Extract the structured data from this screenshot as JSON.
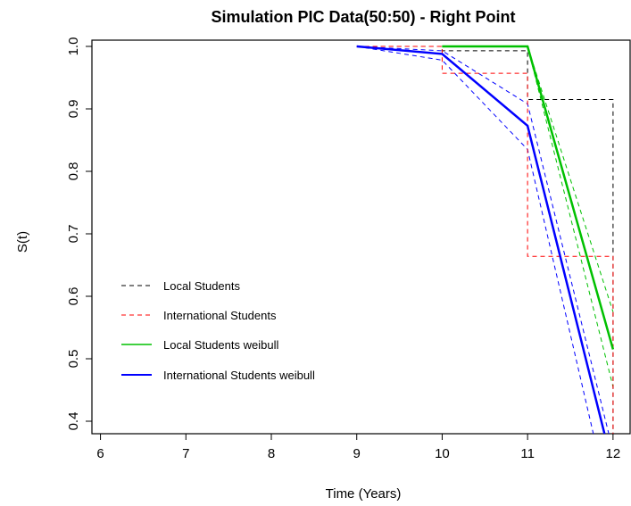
{
  "chart_data": {
    "type": "line",
    "title": "Simulation PIC Data(50:50) - Right Point",
    "xlabel": "Time (Years)",
    "ylabel": "S(t)",
    "xlim": [
      5.9,
      12.2
    ],
    "ylim": [
      0.38,
      1.01
    ],
    "x_ticks": [
      6,
      7,
      8,
      9,
      10,
      11,
      12
    ],
    "y_ticks": [
      0.4,
      0.5,
      0.6,
      0.7,
      0.8,
      0.9,
      1.0
    ],
    "y_tick_labels": [
      "0.4",
      "0.5",
      "0.6",
      "0.7",
      "0.8",
      "0.9",
      "1.0"
    ],
    "grid": false,
    "legend_position": "left",
    "series": [
      {
        "name": "Local Students",
        "color": "#000000",
        "style": "dashed-step",
        "points": [
          [
            9,
            1.0
          ],
          [
            10,
            1.0
          ],
          [
            10,
            0.993
          ],
          [
            11,
            0.993
          ],
          [
            11,
            0.915
          ],
          [
            12,
            0.915
          ],
          [
            12,
            0.38
          ]
        ]
      },
      {
        "name": "International Students",
        "color": "#ff0000",
        "style": "dashed-step",
        "points": [
          [
            9,
            1.0
          ],
          [
            10,
            1.0
          ],
          [
            10,
            0.957
          ],
          [
            11,
            0.957
          ],
          [
            11,
            0.664
          ],
          [
            12,
            0.664
          ],
          [
            12,
            0.38
          ]
        ]
      },
      {
        "name": "Local Students weibull",
        "color": "#00c000",
        "style": "solid",
        "points": [
          [
            10,
            1.0
          ],
          [
            11,
            1.0
          ],
          [
            12,
            0.515
          ]
        ]
      },
      {
        "name": "International Students weibull",
        "color": "#0000ff",
        "style": "solid",
        "points": [
          [
            9,
            1.0
          ],
          [
            10,
            0.988
          ],
          [
            11,
            0.873
          ],
          [
            11.9,
            0.38
          ]
        ]
      }
    ],
    "bands": [
      {
        "color": "#00c000",
        "points": [
          [
            10,
            1.0
          ],
          [
            11,
            1.0
          ],
          [
            12,
            0.575
          ]
        ]
      },
      {
        "color": "#00c000",
        "points": [
          [
            10,
            1.0
          ],
          [
            11,
            1.0
          ],
          [
            12,
            0.455
          ]
        ]
      },
      {
        "color": "#0000ff",
        "points": [
          [
            9,
            1.0
          ],
          [
            10,
            0.993
          ],
          [
            11,
            0.908
          ],
          [
            11.95,
            0.38
          ]
        ]
      },
      {
        "color": "#0000ff",
        "points": [
          [
            9,
            1.0
          ],
          [
            10,
            0.978
          ],
          [
            11,
            0.835
          ],
          [
            11.77,
            0.38
          ]
        ]
      }
    ]
  }
}
